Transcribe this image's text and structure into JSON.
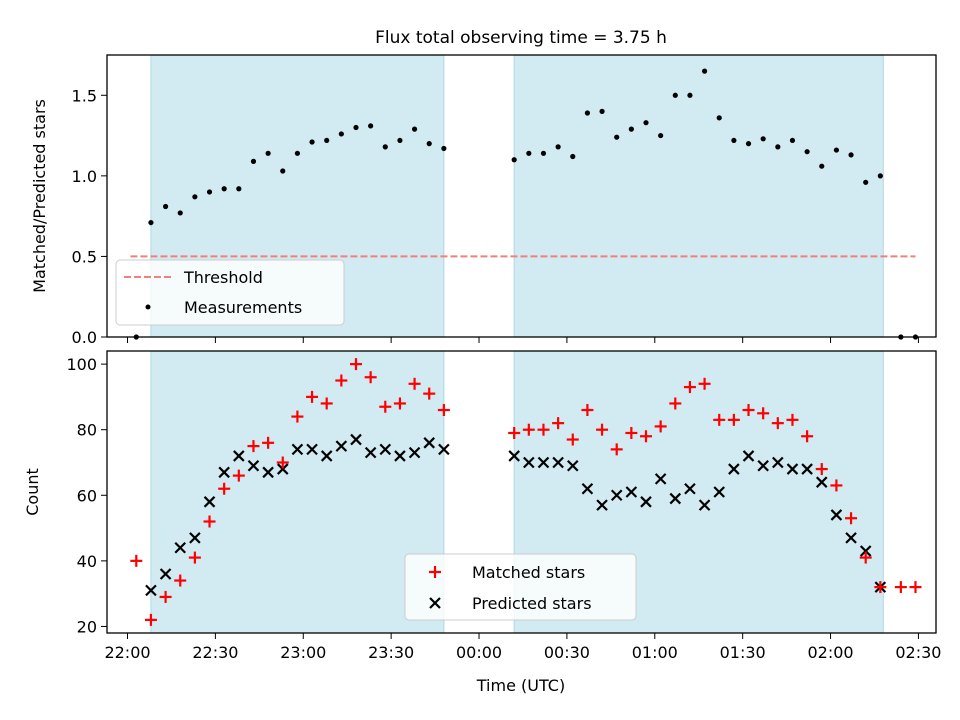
{
  "title": "Flux total observing time = 3.75 h",
  "colors": {
    "shade": "#add8e6",
    "threshold": "#f08080",
    "matched": "#ff0000",
    "predicted": "#000000",
    "measurements": "#000000"
  },
  "x_ticks": [
    "22:00",
    "22:30",
    "23:00",
    "23:30",
    "00:00",
    "00:30",
    "01:00",
    "01:30",
    "02:00",
    "02:30"
  ],
  "xlabel": "Time (UTC)",
  "chart_data": [
    {
      "type": "scatter",
      "ylabel": "Matched/Predicted stars",
      "xlim": [
        "21:53",
        "02:36"
      ],
      "ylim": [
        0,
        1.75
      ],
      "y_ticks": [
        "0.0",
        "0.5",
        "1.0",
        "1.5"
      ],
      "shaded_spans": [
        [
          "22:08",
          "23:48"
        ],
        [
          "00:12",
          "02:18"
        ]
      ],
      "threshold": {
        "name": "Threshold",
        "value": 0.5,
        "x_range": [
          "22:01",
          "02:29"
        ],
        "style": "dashed"
      },
      "legend": {
        "placement": "lower-left",
        "entries": [
          "Threshold",
          "Measurements"
        ]
      },
      "series": [
        {
          "name": "Measurements",
          "x": [
            "22:03",
            "22:08",
            "22:13",
            "22:18",
            "22:23",
            "22:28",
            "22:33",
            "22:38",
            "22:43",
            "22:48",
            "22:53",
            "22:58",
            "23:03",
            "23:08",
            "23:13",
            "23:18",
            "23:23",
            "23:28",
            "23:33",
            "23:38",
            "23:43",
            "23:48",
            "00:12",
            "00:17",
            "00:22",
            "00:27",
            "00:32",
            "00:37",
            "00:42",
            "00:47",
            "00:52",
            "00:57",
            "01:02",
            "01:07",
            "01:12",
            "01:17",
            "01:22",
            "01:27",
            "01:32",
            "01:37",
            "01:42",
            "01:47",
            "01:52",
            "01:57",
            "02:02",
            "02:07",
            "02:12",
            "02:17",
            "02:24",
            "02:29"
          ],
          "y": [
            0.0,
            0.71,
            0.81,
            0.77,
            0.87,
            0.9,
            0.92,
            0.92,
            1.09,
            1.14,
            1.03,
            1.14,
            1.21,
            1.22,
            1.26,
            1.3,
            1.31,
            1.18,
            1.22,
            1.29,
            1.2,
            1.17,
            1.1,
            1.14,
            1.14,
            1.18,
            1.12,
            1.39,
            1.4,
            1.24,
            1.29,
            1.33,
            1.25,
            1.5,
            1.5,
            1.65,
            1.36,
            1.22,
            1.2,
            1.23,
            1.18,
            1.22,
            1.15,
            1.06,
            1.16,
            1.13,
            0.96,
            1.0,
            0.0,
            0.0
          ]
        }
      ]
    },
    {
      "type": "scatter",
      "ylabel": "Count",
      "xlim": [
        "21:53",
        "02:36"
      ],
      "ylim": [
        18,
        104
      ],
      "y_ticks": [
        "20",
        "40",
        "60",
        "80",
        "100"
      ],
      "shaded_spans": [
        [
          "22:08",
          "23:48"
        ],
        [
          "00:12",
          "02:18"
        ]
      ],
      "legend": {
        "placement": "lower-center",
        "entries": [
          "Matched stars",
          "Predicted stars"
        ]
      },
      "series": [
        {
          "name": "Matched stars",
          "marker": "plus",
          "x": [
            "22:03",
            "22:08",
            "22:13",
            "22:18",
            "22:23",
            "22:28",
            "22:33",
            "22:38",
            "22:43",
            "22:48",
            "22:53",
            "22:58",
            "23:03",
            "23:08",
            "23:13",
            "23:18",
            "23:23",
            "23:28",
            "23:33",
            "23:38",
            "23:43",
            "23:48",
            "00:12",
            "00:17",
            "00:22",
            "00:27",
            "00:32",
            "00:37",
            "00:42",
            "00:47",
            "00:52",
            "00:57",
            "01:02",
            "01:07",
            "01:12",
            "01:17",
            "01:22",
            "01:27",
            "01:32",
            "01:37",
            "01:42",
            "01:47",
            "01:52",
            "01:57",
            "02:02",
            "02:07",
            "02:12",
            "02:17",
            "02:24",
            "02:29"
          ],
          "y": [
            40,
            22,
            29,
            34,
            41,
            52,
            62,
            66,
            75,
            76,
            70,
            84,
            90,
            88,
            95,
            100,
            96,
            87,
            88,
            94,
            91,
            86,
            79,
            80,
            80,
            82,
            77,
            86,
            80,
            74,
            79,
            78,
            81,
            88,
            93,
            94,
            83,
            83,
            86,
            85,
            82,
            83,
            78,
            68,
            63,
            53,
            41,
            32,
            32,
            32
          ]
        },
        {
          "name": "Predicted stars",
          "marker": "x",
          "x": [
            "22:08",
            "22:13",
            "22:18",
            "22:23",
            "22:28",
            "22:33",
            "22:38",
            "22:43",
            "22:48",
            "22:53",
            "22:58",
            "23:03",
            "23:08",
            "23:13",
            "23:18",
            "23:23",
            "23:28",
            "23:33",
            "23:38",
            "23:43",
            "23:48",
            "00:12",
            "00:17",
            "00:22",
            "00:27",
            "00:32",
            "00:37",
            "00:42",
            "00:47",
            "00:52",
            "00:57",
            "01:02",
            "01:07",
            "01:12",
            "01:17",
            "01:22",
            "01:27",
            "01:32",
            "01:37",
            "01:42",
            "01:47",
            "01:52",
            "01:57",
            "02:02",
            "02:07",
            "02:12",
            "02:17"
          ],
          "y": [
            31,
            36,
            44,
            47,
            58,
            67,
            72,
            69,
            67,
            68,
            74,
            74,
            72,
            75,
            77,
            73,
            74,
            72,
            73,
            76,
            74,
            72,
            70,
            70,
            70,
            69,
            62,
            57,
            60,
            61,
            58,
            65,
            59,
            62,
            57,
            61,
            68,
            72,
            69,
            70,
            68,
            68,
            64,
            54,
            47,
            43,
            32
          ]
        }
      ]
    }
  ]
}
